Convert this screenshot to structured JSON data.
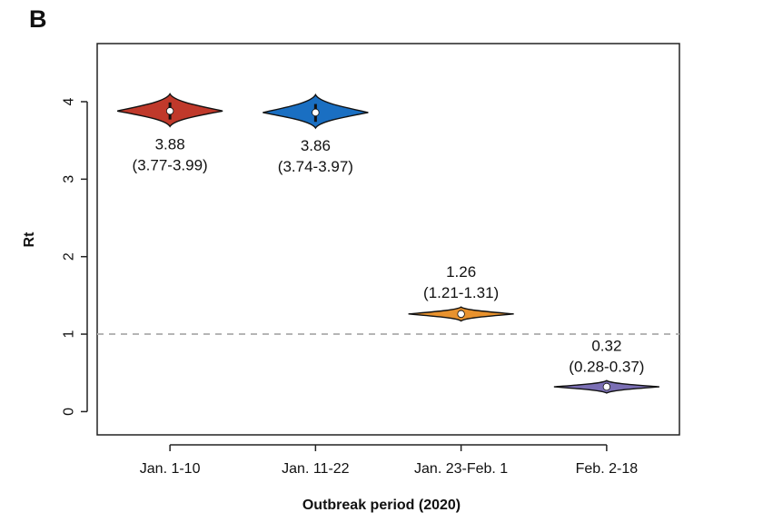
{
  "panel_label": "B",
  "chart_data": {
    "type": "violin",
    "xlabel": "Outbreak period (2020)",
    "ylabel": "Rt",
    "ylim": [
      -0.3,
      4.75
    ],
    "yticks": [
      "0",
      "1",
      "2",
      "3",
      "4"
    ],
    "reference_line": {
      "y": 1,
      "style": "dashed"
    },
    "categories": [
      "Jan. 1-10",
      "Jan. 11-22",
      "Jan. 23-Feb. 1",
      "Feb. 2-18"
    ],
    "series": [
      {
        "name": "Jan. 1-10",
        "median": 3.88,
        "low": 3.77,
        "high": 3.99,
        "min": 3.68,
        "max": 4.1,
        "color": "#c0392b",
        "label": "3.88",
        "ci_label": "(3.77-3.99)",
        "label_position": "below"
      },
      {
        "name": "Jan. 11-22",
        "median": 3.86,
        "low": 3.74,
        "high": 3.97,
        "min": 3.66,
        "max": 4.09,
        "color": "#1a6fc2",
        "label": "3.86",
        "ci_label": "(3.74-3.97)",
        "label_position": "below"
      },
      {
        "name": "Jan. 23-Feb. 1",
        "median": 1.26,
        "low": 1.21,
        "high": 1.31,
        "min": 1.17,
        "max": 1.35,
        "color": "#e8922e",
        "label": "1.26",
        "ci_label": "(1.21-1.31)",
        "label_position": "above"
      },
      {
        "name": "Feb. 2-18",
        "median": 0.32,
        "low": 0.28,
        "high": 0.37,
        "min": 0.24,
        "max": 0.4,
        "color": "#7b6fb5",
        "label": "0.32",
        "ci_label": "(0.28-0.37)",
        "label_position": "above"
      }
    ]
  }
}
